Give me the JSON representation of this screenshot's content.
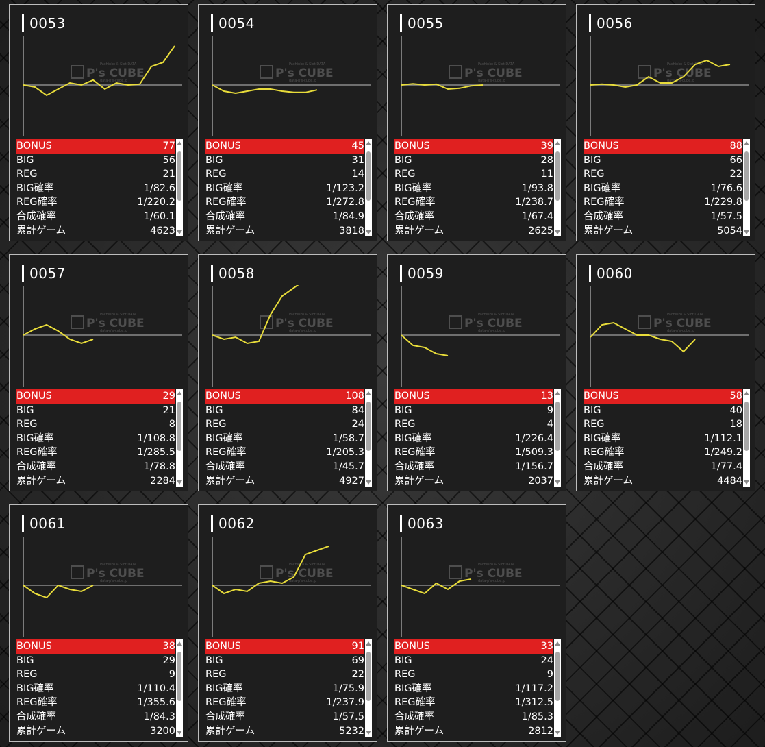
{
  "labels": {
    "bonus": "BONUS",
    "big": "BIG",
    "reg": "REG",
    "big_rate": "BIG確率",
    "reg_rate": "REG確率",
    "combined_rate": "合成確率",
    "total_games": "累計ゲーム"
  },
  "watermark": {
    "small_top": "Pachinko & Slot DATA",
    "brand": "P's CUBE",
    "small_bottom": "data-p's-cube.jp"
  },
  "colors": {
    "bonus_bg": "#e02020",
    "line": "#e8dc3a",
    "baseline": "#8a8a8a"
  },
  "machines": [
    {
      "id": "0053",
      "bonus": "77",
      "big": "56",
      "reg": "21",
      "big_rate": "1/82.6",
      "reg_rate": "1/220.2",
      "combined_rate": "1/60.1",
      "total_games": "4623",
      "graph": [
        0,
        -0.05,
        -0.25,
        -0.1,
        0.05,
        0,
        0.12,
        -0.1,
        0.05,
        0,
        0.02,
        0.45,
        0.55,
        0.95
      ]
    },
    {
      "id": "0054",
      "bonus": "45",
      "big": "31",
      "reg": "14",
      "big_rate": "1/123.2",
      "reg_rate": "1/272.8",
      "combined_rate": "1/84.9",
      "total_games": "3818",
      "graph": [
        0,
        -0.15,
        -0.2,
        -0.15,
        -0.1,
        -0.1,
        -0.15,
        -0.18,
        -0.18,
        -0.12
      ]
    },
    {
      "id": "0055",
      "bonus": "39",
      "big": "28",
      "reg": "11",
      "big_rate": "1/93.8",
      "reg_rate": "1/238.7",
      "combined_rate": "1/67.4",
      "total_games": "2625",
      "graph": [
        0,
        0.03,
        0,
        0.02,
        -0.1,
        -0.08,
        -0.02,
        0
      ]
    },
    {
      "id": "0056",
      "bonus": "88",
      "big": "66",
      "reg": "22",
      "big_rate": "1/76.6",
      "reg_rate": "1/229.8",
      "combined_rate": "1/57.5",
      "total_games": "5054",
      "graph": [
        0,
        0.02,
        0,
        -0.05,
        0,
        0.2,
        0.05,
        0.05,
        0.2,
        0.5,
        0.6,
        0.45,
        0.5
      ]
    },
    {
      "id": "0057",
      "bonus": "29",
      "big": "21",
      "reg": "8",
      "big_rate": "1/108.8",
      "reg_rate": "1/285.5",
      "combined_rate": "1/78.8",
      "total_games": "2284",
      "graph": [
        0,
        0.15,
        0.25,
        0.1,
        -0.1,
        -0.2,
        -0.1
      ]
    },
    {
      "id": "0058",
      "bonus": "108",
      "big": "84",
      "reg": "24",
      "big_rate": "1/58.7",
      "reg_rate": "1/205.3",
      "combined_rate": "1/45.7",
      "total_games": "4927",
      "graph": [
        0,
        -0.1,
        -0.05,
        -0.2,
        -0.15,
        0.5,
        0.95,
        1.15,
        1.35,
        1.25,
        1.3,
        1.35,
        1.25
      ]
    },
    {
      "id": "0059",
      "bonus": "13",
      "big": "9",
      "reg": "4",
      "big_rate": "1/226.4",
      "reg_rate": "1/509.3",
      "combined_rate": "1/156.7",
      "total_games": "2037",
      "graph": [
        0,
        -0.25,
        -0.3,
        -0.45,
        -0.5
      ]
    },
    {
      "id": "0060",
      "bonus": "58",
      "big": "40",
      "reg": "18",
      "big_rate": "1/112.1",
      "reg_rate": "1/249.2",
      "combined_rate": "1/77.4",
      "total_games": "4484",
      "graph": [
        -0.05,
        0.25,
        0.3,
        0.15,
        0,
        0,
        -0.1,
        -0.15,
        -0.4,
        -0.1
      ]
    },
    {
      "id": "0061",
      "bonus": "38",
      "big": "29",
      "reg": "9",
      "big_rate": "1/110.4",
      "reg_rate": "1/355.6",
      "combined_rate": "1/84.3",
      "total_games": "3200",
      "graph": [
        0,
        -0.2,
        -0.3,
        0,
        -0.1,
        -0.15,
        0
      ]
    },
    {
      "id": "0062",
      "bonus": "91",
      "big": "69",
      "reg": "22",
      "big_rate": "1/75.9",
      "reg_rate": "1/237.9",
      "combined_rate": "1/57.5",
      "total_games": "5232",
      "graph": [
        0,
        -0.2,
        -0.1,
        -0.15,
        0.05,
        0.1,
        0.05,
        0.2,
        0.75,
        0.85,
        0.95
      ]
    },
    {
      "id": "0063",
      "bonus": "33",
      "big": "24",
      "reg": "9",
      "big_rate": "1/117.2",
      "reg_rate": "1/312.5",
      "combined_rate": "1/85.3",
      "total_games": "2812",
      "graph": [
        0,
        -0.1,
        -0.2,
        0.05,
        -0.1,
        0.1,
        0.15
      ]
    }
  ]
}
